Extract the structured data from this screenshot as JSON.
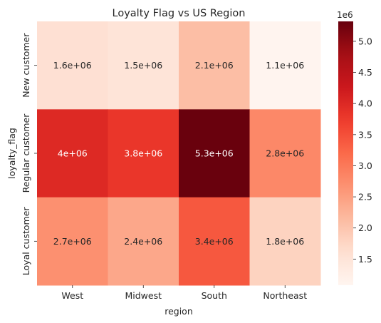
{
  "chart_data": {
    "type": "heatmap",
    "title": "Loyalty Flag vs US Region",
    "xlabel": "region",
    "ylabel": "loyalty_flag",
    "x_categories": [
      "West",
      "Midwest",
      "South",
      "Northeast"
    ],
    "y_categories": [
      "New customer",
      "Regular customer",
      "Loyal customer"
    ],
    "values": [
      [
        1600000,
        1500000,
        2100000,
        1100000
      ],
      [
        4000000,
        3800000,
        5300000,
        2800000
      ],
      [
        2700000,
        2400000,
        3400000,
        1800000
      ]
    ],
    "annotations": [
      [
        "1.6e+06",
        "1.5e+06",
        "2.1e+06",
        "1.1e+06"
      ],
      [
        "4e+06",
        "3.8e+06",
        "5.3e+06",
        "2.8e+06"
      ],
      [
        "2.7e+06",
        "2.4e+06",
        "3.4e+06",
        "1.8e+06"
      ]
    ],
    "colormap": "Reds",
    "colorbar": {
      "range": [
        1080000,
        5320000
      ],
      "ticks": [
        1.5,
        2.0,
        2.5,
        3.0,
        3.5,
        4.0,
        4.5,
        5.0
      ],
      "tick_labels": [
        "1.5",
        "2.0",
        "2.5",
        "3.0",
        "3.5",
        "4.0",
        "4.5",
        "5.0"
      ],
      "multiplier": 1000000,
      "offset_label": "1e6"
    }
  }
}
